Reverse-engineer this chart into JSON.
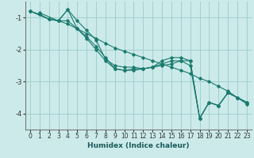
{
  "xlabel": "Humidex (Indice chaleur)",
  "bg_color": "#cceaea",
  "grid_color": "#99cccc",
  "line_color": "#1a7a6e",
  "xlim": [
    -0.5,
    23.5
  ],
  "ylim": [
    -4.5,
    -0.5
  ],
  "yticks": [
    -4,
    -3,
    -2,
    -1
  ],
  "xticks": [
    0,
    1,
    2,
    3,
    4,
    5,
    6,
    7,
    8,
    9,
    10,
    11,
    12,
    13,
    14,
    15,
    16,
    17,
    18,
    19,
    20,
    21,
    22,
    23
  ],
  "lines": [
    {
      "x": [
        0,
        1,
        2,
        3,
        4,
        5,
        6,
        7,
        8,
        9,
        10,
        11,
        12,
        13,
        14,
        15,
        16,
        17,
        18,
        19,
        20,
        21,
        22,
        23
      ],
      "y": [
        -0.8,
        -0.9,
        -1.05,
        -1.1,
        -1.2,
        -1.35,
        -1.5,
        -1.65,
        -1.8,
        -1.95,
        -2.05,
        -2.15,
        -2.25,
        -2.35,
        -2.45,
        -2.55,
        -2.65,
        -2.75,
        -2.9,
        -3.0,
        -3.15,
        -3.3,
        -3.5,
        -3.7
      ]
    },
    {
      "x": [
        0,
        1,
        2,
        3,
        4,
        5,
        6,
        7,
        8,
        9,
        10,
        11,
        12,
        13,
        14,
        15,
        16,
        17,
        18,
        19,
        20,
        21,
        22,
        23
      ],
      "y": [
        -0.8,
        -0.9,
        -1.05,
        -1.1,
        -0.75,
        -1.1,
        -1.4,
        -1.7,
        -2.3,
        -2.5,
        -2.55,
        -2.55,
        -2.6,
        -2.55,
        -2.5,
        -2.45,
        -2.35,
        -2.35,
        -4.15,
        -3.65,
        -3.75,
        -3.35,
        -3.5,
        -3.65
      ]
    },
    {
      "x": [
        0,
        2,
        3,
        4,
        5,
        6,
        7,
        8,
        9,
        10,
        11,
        12,
        13,
        14,
        15,
        16,
        17,
        18,
        19,
        20,
        21,
        22,
        23
      ],
      "y": [
        -0.8,
        -1.05,
        -1.1,
        -0.75,
        -1.35,
        -1.65,
        -2.0,
        -2.35,
        -2.6,
        -2.65,
        -2.6,
        -2.6,
        -2.55,
        -2.45,
        -2.35,
        -2.35,
        -2.5,
        -4.15,
        -3.65,
        -3.75,
        -3.35,
        -3.5,
        -3.65
      ]
    },
    {
      "x": [
        1,
        3,
        4,
        5,
        6,
        7,
        8,
        9,
        10,
        11,
        12,
        13,
        14,
        15,
        16,
        17,
        18,
        19,
        20,
        21,
        22,
        23
      ],
      "y": [
        -0.85,
        -1.1,
        -1.1,
        -1.35,
        -1.6,
        -1.9,
        -2.25,
        -2.6,
        -2.65,
        -2.65,
        -2.6,
        -2.55,
        -2.35,
        -2.25,
        -2.25,
        -2.35,
        -4.15,
        -3.65,
        -3.75,
        -3.35,
        -3.5,
        -3.65
      ]
    }
  ]
}
